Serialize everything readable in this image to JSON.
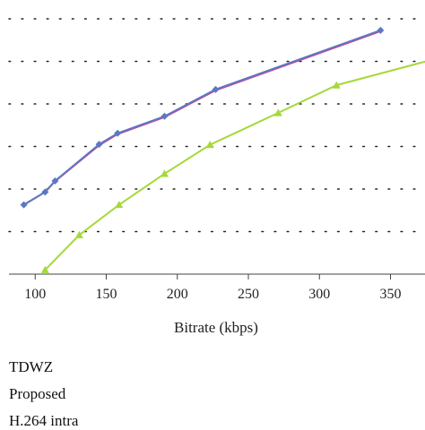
{
  "chart_data": {
    "type": "line",
    "xlabel": "Bitrate (kbps)",
    "ylabel": "",
    "title": "",
    "x_ticks": [
      100,
      150,
      200,
      250,
      300,
      350
    ],
    "xlim": [
      88,
      375
    ],
    "ylim": [
      0,
      6
    ],
    "grid": "horizontal-dotted",
    "legend_position": "below",
    "series": [
      {
        "name": "TDWZ",
        "color": "#d0408c",
        "marker": "none",
        "points": [
          [
            92,
            1.63
          ],
          [
            107,
            1.93
          ],
          [
            114,
            2.18
          ],
          [
            145,
            3.03
          ],
          [
            158,
            3.29
          ],
          [
            191,
            3.69
          ],
          [
            227,
            4.32
          ],
          [
            343,
            5.71
          ]
        ]
      },
      {
        "name": "Proposed",
        "color": "#5b78c4",
        "marker": "diamond",
        "points": [
          [
            92,
            1.63
          ],
          [
            107,
            1.93
          ],
          [
            114,
            2.19
          ],
          [
            145,
            3.05
          ],
          [
            158,
            3.31
          ],
          [
            191,
            3.71
          ],
          [
            227,
            4.34
          ],
          [
            343,
            5.73
          ]
        ]
      },
      {
        "name": "H.264 intra",
        "color": "#a6d83a",
        "marker": "triangle",
        "points": [
          [
            107,
            0.1
          ],
          [
            131,
            0.92
          ],
          [
            159,
            1.63
          ],
          [
            191,
            2.36
          ],
          [
            223,
            3.04
          ],
          [
            271,
            3.79
          ],
          [
            312,
            4.44
          ],
          [
            375,
            5.0
          ]
        ]
      }
    ]
  },
  "legend": {
    "items": [
      "TDWZ",
      "Proposed",
      "H.264 intra"
    ]
  }
}
